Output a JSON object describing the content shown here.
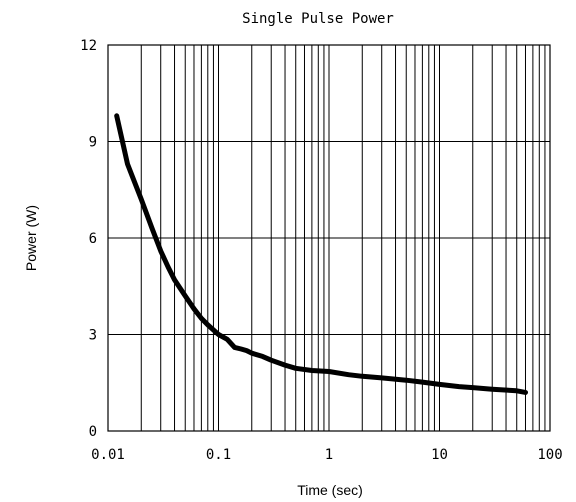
{
  "chart_data": {
    "type": "line",
    "title": "Single Pulse Power",
    "xlabel": "Time (sec)",
    "ylabel": "Power (W)",
    "x_scale": "log",
    "xlim": [
      0.01,
      100
    ],
    "ylim": [
      0,
      12
    ],
    "x_tick_labels": [
      "0.01",
      "0.1",
      "1",
      "10",
      "100"
    ],
    "y_tick_labels": [
      "0",
      "3",
      "6",
      "9",
      "12"
    ],
    "grid": true,
    "legend": "none",
    "line_color": "#000000",
    "series": [
      {
        "x": [
          0.012,
          0.015,
          0.02,
          0.025,
          0.03,
          0.035,
          0.04,
          0.05,
          0.06,
          0.07,
          0.08,
          0.1,
          0.12,
          0.14,
          0.16,
          0.18,
          0.2,
          0.25,
          0.3,
          0.4,
          0.5,
          0.7,
          1,
          1.5,
          2,
          3,
          5,
          7,
          10,
          15,
          20,
          30,
          50,
          60
        ],
        "y": [
          9.8,
          8.3,
          7.2,
          6.3,
          5.6,
          5.1,
          4.7,
          4.2,
          3.8,
          3.5,
          3.3,
          3.0,
          2.85,
          2.6,
          2.55,
          2.5,
          2.42,
          2.32,
          2.2,
          2.05,
          1.95,
          1.88,
          1.85,
          1.75,
          1.7,
          1.65,
          1.58,
          1.52,
          1.45,
          1.38,
          1.35,
          1.3,
          1.25,
          1.2
        ]
      }
    ]
  }
}
